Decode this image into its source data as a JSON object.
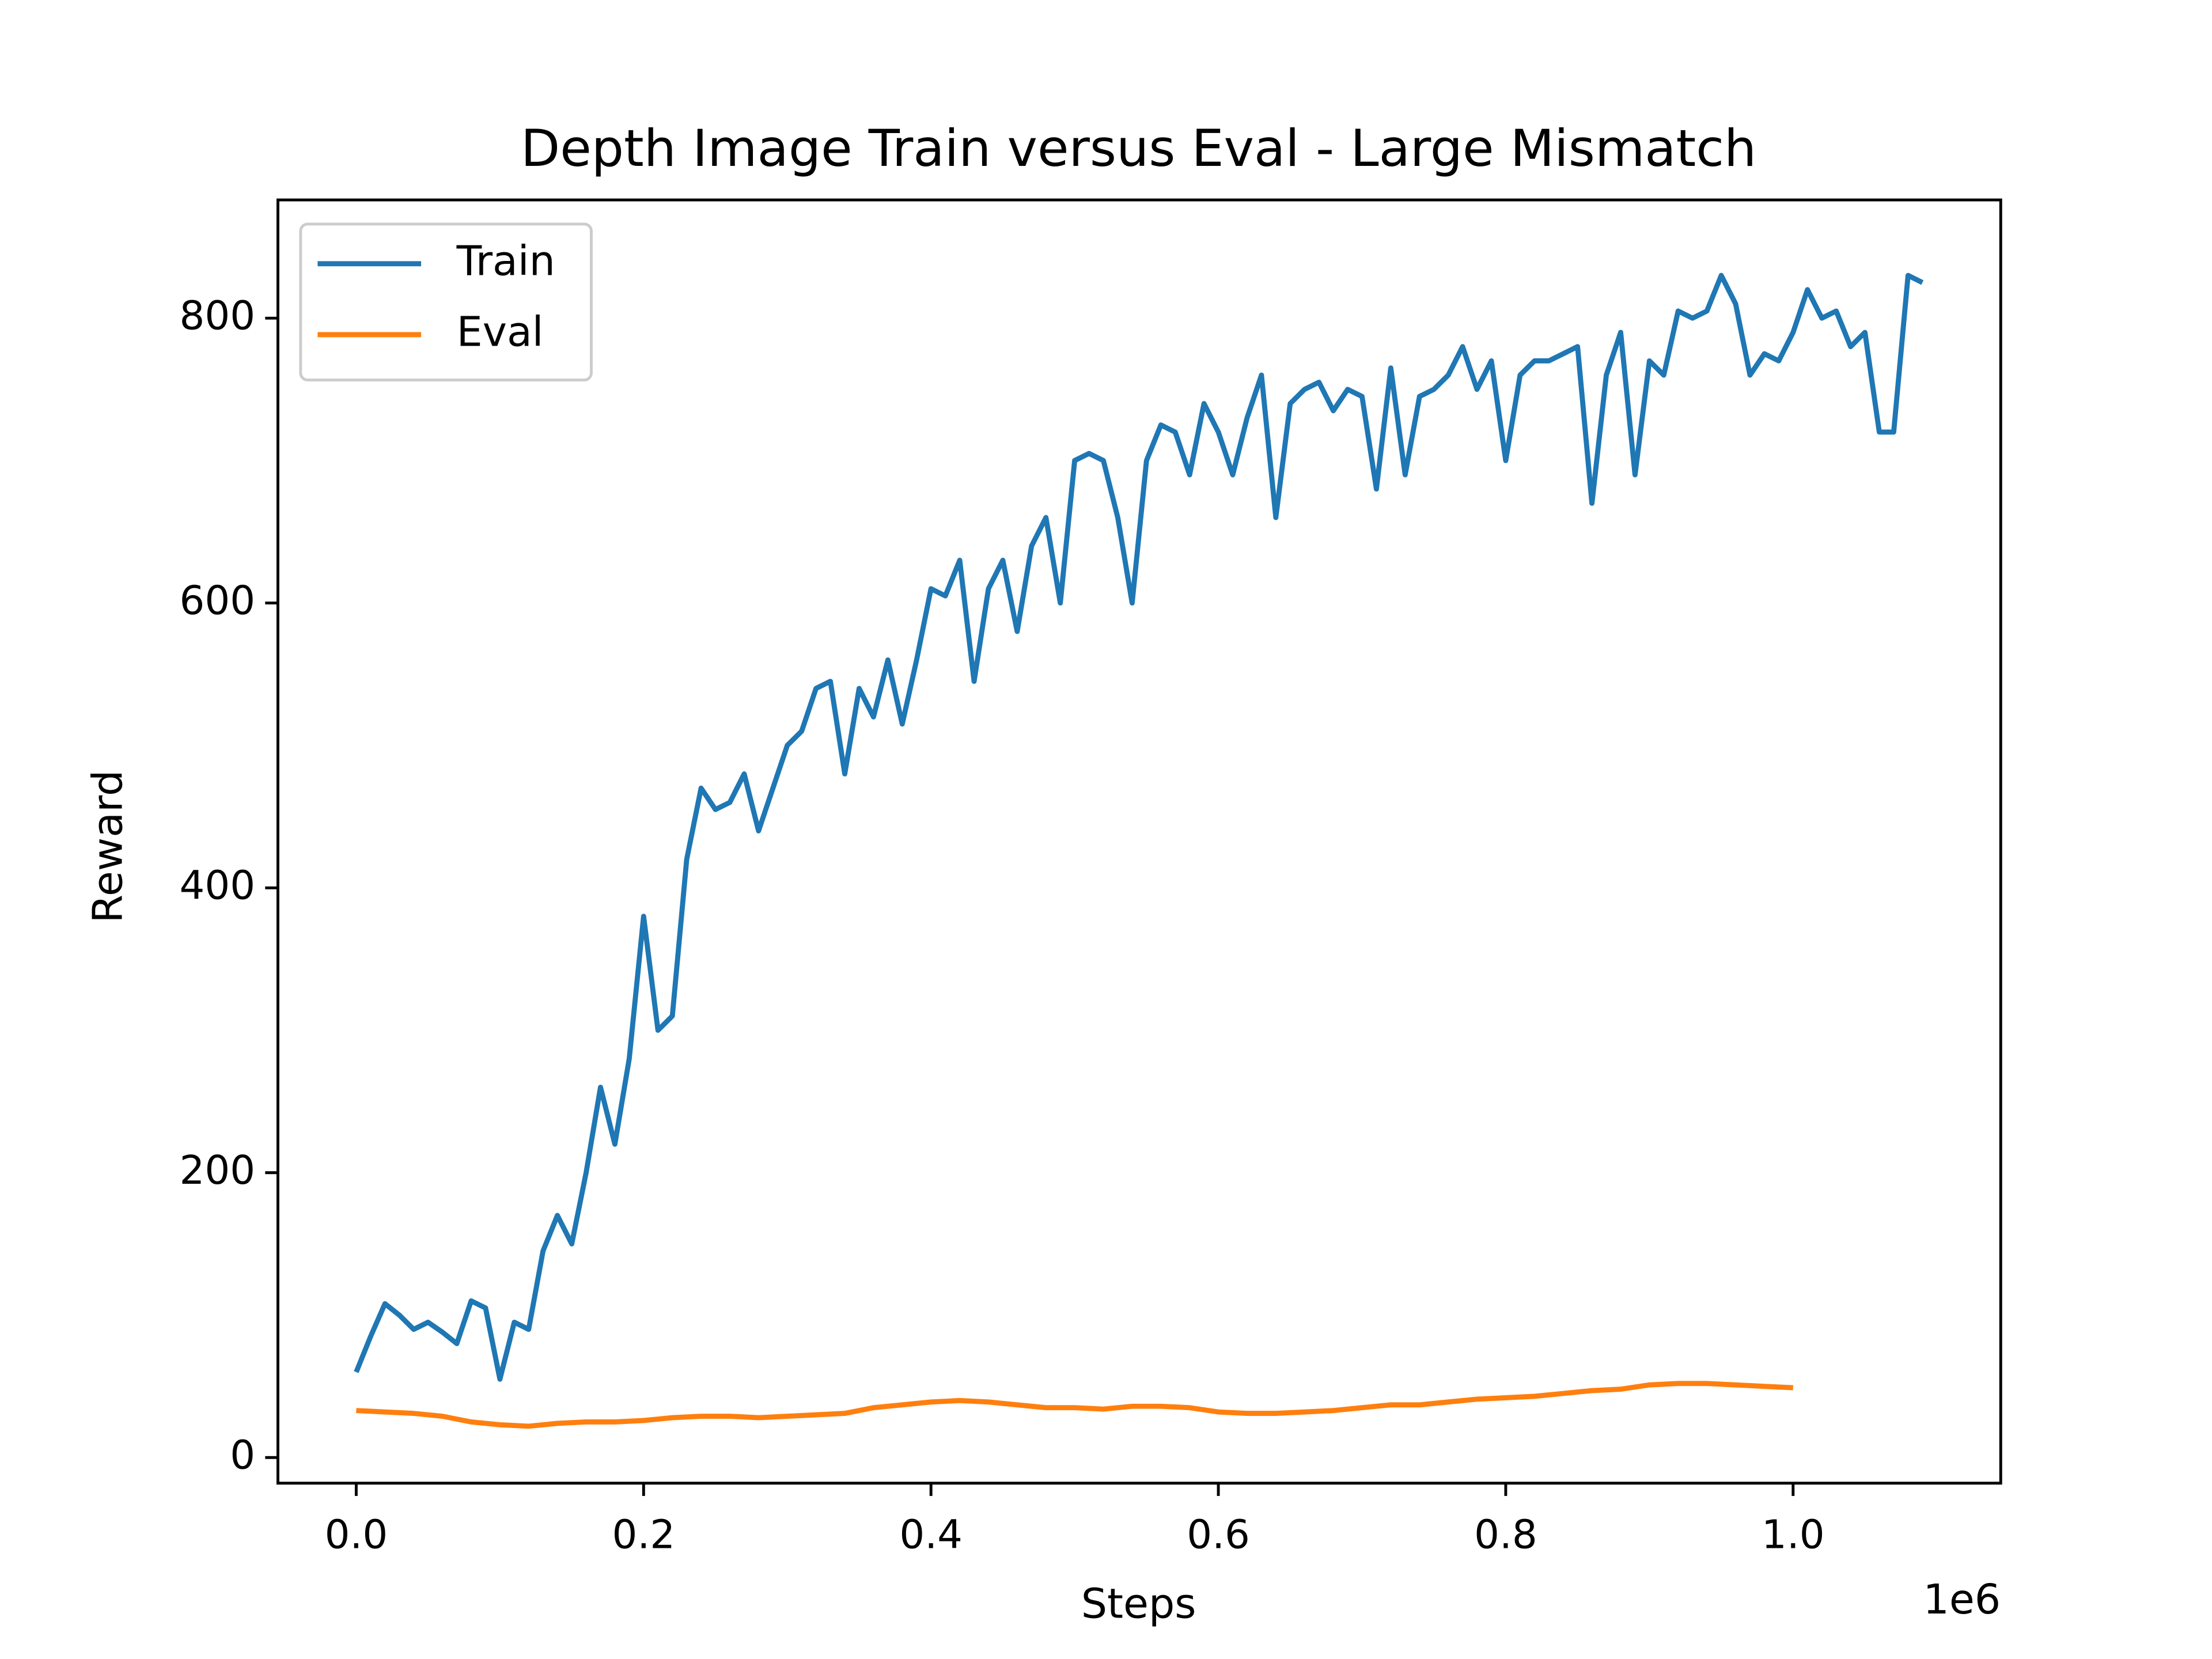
{
  "chart_data": {
    "type": "line",
    "title": "Depth Image Train versus Eval - Large Mismatch",
    "x_label": "Steps",
    "y_label": "Reward",
    "x_offset_label": "1e6",
    "xlim": [
      -54500,
      1144500
    ],
    "ylim": [
      -18,
      883
    ],
    "xticks": [
      {
        "value": 0,
        "label": "0.0"
      },
      {
        "value": 200000,
        "label": "0.2"
      },
      {
        "value": 400000,
        "label": "0.4"
      },
      {
        "value": 600000,
        "label": "0.6"
      },
      {
        "value": 800000,
        "label": "0.8"
      },
      {
        "value": 1000000,
        "label": "1.0"
      }
    ],
    "yticks": [
      0,
      200,
      400,
      600,
      800
    ],
    "legend": "upper left",
    "series": [
      {
        "name": "Train",
        "color": "#1f77b4",
        "x": [
          0,
          10000,
          20000,
          30000,
          40000,
          50000,
          60000,
          70000,
          80000,
          90000,
          100000,
          110000,
          120000,
          130000,
          140000,
          150000,
          160000,
          170000,
          180000,
          190000,
          200000,
          210000,
          220000,
          230000,
          240000,
          250000,
          260000,
          270000,
          280000,
          290000,
          300000,
          310000,
          320000,
          330000,
          340000,
          350000,
          360000,
          370000,
          380000,
          390000,
          400000,
          410000,
          420000,
          430000,
          440000,
          450000,
          460000,
          470000,
          480000,
          490000,
          500000,
          510000,
          520000,
          530000,
          540000,
          550000,
          560000,
          570000,
          580000,
          590000,
          600000,
          610000,
          620000,
          630000,
          640000,
          650000,
          660000,
          670000,
          680000,
          690000,
          700000,
          710000,
          720000,
          730000,
          740000,
          750000,
          760000,
          770000,
          780000,
          790000,
          800000,
          810000,
          820000,
          830000,
          840000,
          850000,
          860000,
          870000,
          880000,
          890000,
          900000,
          910000,
          920000,
          930000,
          940000,
          950000,
          960000,
          970000,
          980000,
          990000,
          1000000,
          1010000,
          1020000,
          1030000,
          1040000,
          1050000,
          1060000,
          1070000,
          1080000,
          1090000
        ],
        "values": [
          60,
          85,
          108,
          100,
          90,
          95,
          88,
          80,
          110,
          105,
          55,
          95,
          90,
          145,
          170,
          150,
          200,
          260,
          220,
          280,
          380,
          300,
          310,
          420,
          470,
          455,
          460,
          480,
          440,
          470,
          500,
          510,
          540,
          545,
          480,
          540,
          520,
          560,
          515,
          560,
          610,
          605,
          630,
          545,
          610,
          630,
          580,
          640,
          660,
          600,
          700,
          705,
          700,
          660,
          600,
          700,
          725,
          720,
          690,
          740,
          720,
          690,
          730,
          760,
          660,
          740,
          750,
          755,
          735,
          750,
          745,
          680,
          765,
          690,
          745,
          750,
          760,
          780,
          750,
          770,
          700,
          760,
          770,
          770,
          775,
          780,
          670,
          760,
          790,
          690,
          770,
          760,
          805,
          800,
          805,
          830,
          810,
          760,
          775,
          770,
          790,
          820,
          800,
          805,
          780,
          790,
          720,
          720,
          830,
          825
        ]
      },
      {
        "name": "Eval",
        "color": "#ff7f0e",
        "x": [
          0,
          20000,
          40000,
          60000,
          80000,
          100000,
          120000,
          140000,
          160000,
          180000,
          200000,
          220000,
          240000,
          260000,
          280000,
          300000,
          320000,
          340000,
          360000,
          380000,
          400000,
          420000,
          440000,
          460000,
          480000,
          500000,
          520000,
          540000,
          560000,
          580000,
          600000,
          620000,
          640000,
          660000,
          680000,
          700000,
          720000,
          740000,
          760000,
          780000,
          800000,
          820000,
          840000,
          860000,
          880000,
          900000,
          920000,
          940000,
          960000,
          980000,
          1000000
        ],
        "values": [
          33,
          32,
          31,
          29,
          25,
          23,
          22,
          24,
          25,
          25,
          26,
          28,
          29,
          29,
          28,
          29,
          30,
          31,
          35,
          37,
          39,
          40,
          39,
          37,
          35,
          35,
          34,
          36,
          36,
          35,
          32,
          31,
          31,
          32,
          33,
          35,
          37,
          37,
          39,
          41,
          42,
          43,
          45,
          47,
          48,
          51,
          52,
          52,
          51,
          50,
          49
        ]
      }
    ]
  }
}
